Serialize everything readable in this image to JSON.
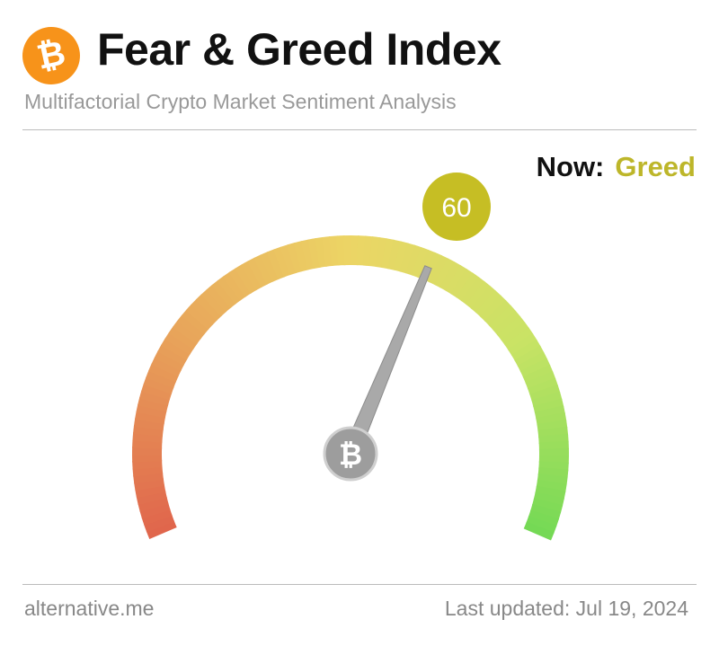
{
  "header": {
    "logo_symbol": "₿",
    "title": "Fear & Greed Index",
    "subtitle": "Multifactorial Crypto Market Sentiment Analysis"
  },
  "status": {
    "now_label": "Now:",
    "classification": "Greed",
    "classification_color": "#bdb62a"
  },
  "chart_data": {
    "type": "gauge",
    "value": 60,
    "range": [
      0,
      100
    ],
    "value_label": "60",
    "bubble_color": "#c6be24",
    "needle_hub_symbol": "₿",
    "color_stops": [
      "#e0654c",
      "#e8a35a",
      "#ecd565",
      "#c9e365",
      "#74d955"
    ]
  },
  "footer": {
    "source": "alternative.me",
    "last_updated": "Last updated: Jul 19, 2024"
  }
}
